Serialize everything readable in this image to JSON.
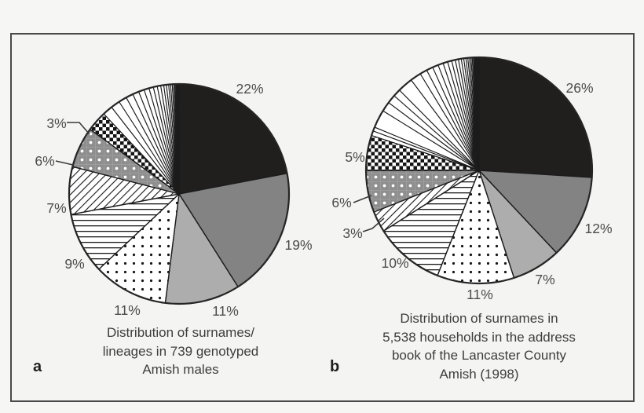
{
  "palette": {
    "black": "#211e1e",
    "dark_gray": "#838383",
    "light_gray": "#adadad",
    "pattern_gray": "#8e8e8e",
    "wedge_line": "#1c1c1c",
    "label_color": "#4b4b4b",
    "caption_color": "#3d3d3d",
    "panel_border": "#4a4a4a",
    "background": "#f5f5f4"
  },
  "chart_data": [
    {
      "type": "pie",
      "panel_label": "a",
      "title": "Distribution of surnames/lineages in 739 genotyped Amish males",
      "caption_lines": [
        "Distribution of surnames/",
        "lineages in 739 genotyped",
        "Amish males"
      ],
      "direction": "clockwise",
      "start_angle_deg": 0,
      "legend_position": "none",
      "slices": [
        {
          "label": "22%",
          "value": 22,
          "pattern": "solid-black"
        },
        {
          "label": "19%",
          "value": 19,
          "pattern": "solid-darkgray"
        },
        {
          "label": "11%",
          "value": 11,
          "pattern": "solid-lightgray"
        },
        {
          "label": "11%",
          "value": 11,
          "pattern": "black-dots-on-white"
        },
        {
          "label": "9%",
          "value": 9,
          "pattern": "horizontal-lines"
        },
        {
          "label": "7%",
          "value": 7,
          "pattern": "diagonal-hatch"
        },
        {
          "label": "6%",
          "value": 6,
          "pattern": "white-dots-on-gray"
        },
        {
          "label": "3%",
          "value": 3,
          "pattern": "checkerboard"
        },
        {
          "label": "",
          "value": 12,
          "pattern": "many-thin-white-slices",
          "note": "unlabeled remainder: many small lineages shown as thin wedges"
        }
      ]
    },
    {
      "type": "pie",
      "panel_label": "b",
      "title": "Distribution of surnames in 5,538 households in the address book of the Lancaster County Amish (1998)",
      "caption_lines": [
        "Distribution of surnames in",
        "5,538 households in the address",
        "book of the Lancaster County",
        "Amish (1998)"
      ],
      "direction": "clockwise",
      "start_angle_deg": 0,
      "legend_position": "none",
      "slices": [
        {
          "label": "26%",
          "value": 26,
          "pattern": "solid-black"
        },
        {
          "label": "12%",
          "value": 12,
          "pattern": "solid-darkgray"
        },
        {
          "label": "7%",
          "value": 7,
          "pattern": "solid-lightgray"
        },
        {
          "label": "11%",
          "value": 11,
          "pattern": "black-dots-on-white"
        },
        {
          "label": "10%",
          "value": 10,
          "pattern": "horizontal-lines"
        },
        {
          "label": "3%",
          "value": 3,
          "pattern": "diagonal-hatch"
        },
        {
          "label": "6%",
          "value": 6,
          "pattern": "white-dots-on-gray"
        },
        {
          "label": "5%",
          "value": 5,
          "pattern": "checkerboard"
        },
        {
          "label": "",
          "value": 20,
          "pattern": "many-thin-white-slices",
          "note": "unlabeled remainder: many small surnames shown as thin wedges"
        }
      ]
    }
  ]
}
